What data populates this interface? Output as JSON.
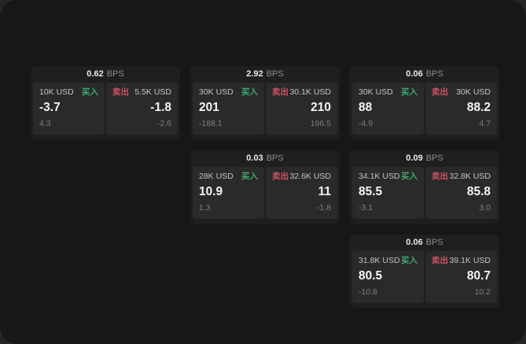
{
  "labels": {
    "bps_unit": "BPS",
    "buy": "买入",
    "sell": "卖出"
  },
  "colors": {
    "buy_green": "#40a873",
    "sell_red": "#cc5268",
    "page_bg": "#171717",
    "card_bg": "#1f1f1f",
    "panel_bg": "#2a2a2a"
  },
  "cards": [
    {
      "col": 1,
      "row": 1,
      "bps": "0.62",
      "buy": {
        "amount": "10K USD",
        "value": "-3.7",
        "sub": "4.3"
      },
      "sell": {
        "amount": "5.5K USD",
        "value": "-1.8",
        "sub": "-2.6"
      }
    },
    {
      "col": 2,
      "row": 1,
      "bps": "2.92",
      "buy": {
        "amount": "30K USD",
        "value": "201",
        "sub": "-188.1"
      },
      "sell": {
        "amount": "30.1K USD",
        "value": "210",
        "sub": "196.5"
      }
    },
    {
      "col": 3,
      "row": 1,
      "bps": "0.06",
      "buy": {
        "amount": "30K USD",
        "value": "88",
        "sub": "-4.9"
      },
      "sell": {
        "amount": "30K USD",
        "value": "88.2",
        "sub": "4.7"
      }
    },
    {
      "col": 2,
      "row": 2,
      "bps": "0.03",
      "buy": {
        "amount": "28K USD",
        "value": "10.9",
        "sub": "1.3"
      },
      "sell": {
        "amount": "32.6K USD",
        "value": "11",
        "sub": "-1.8"
      }
    },
    {
      "col": 3,
      "row": 2,
      "bps": "0.09",
      "buy": {
        "amount": "34.1K USD",
        "value": "85.5",
        "sub": "-3.1"
      },
      "sell": {
        "amount": "32.8K USD",
        "value": "85.8",
        "sub": "3.0"
      }
    },
    {
      "col": 3,
      "row": 3,
      "bps": "0.06",
      "buy": {
        "amount": "31.8K USD",
        "value": "80.5",
        "sub": "-10.8"
      },
      "sell": {
        "amount": "39.1K USD",
        "value": "80.7",
        "sub": "10.2"
      }
    }
  ]
}
